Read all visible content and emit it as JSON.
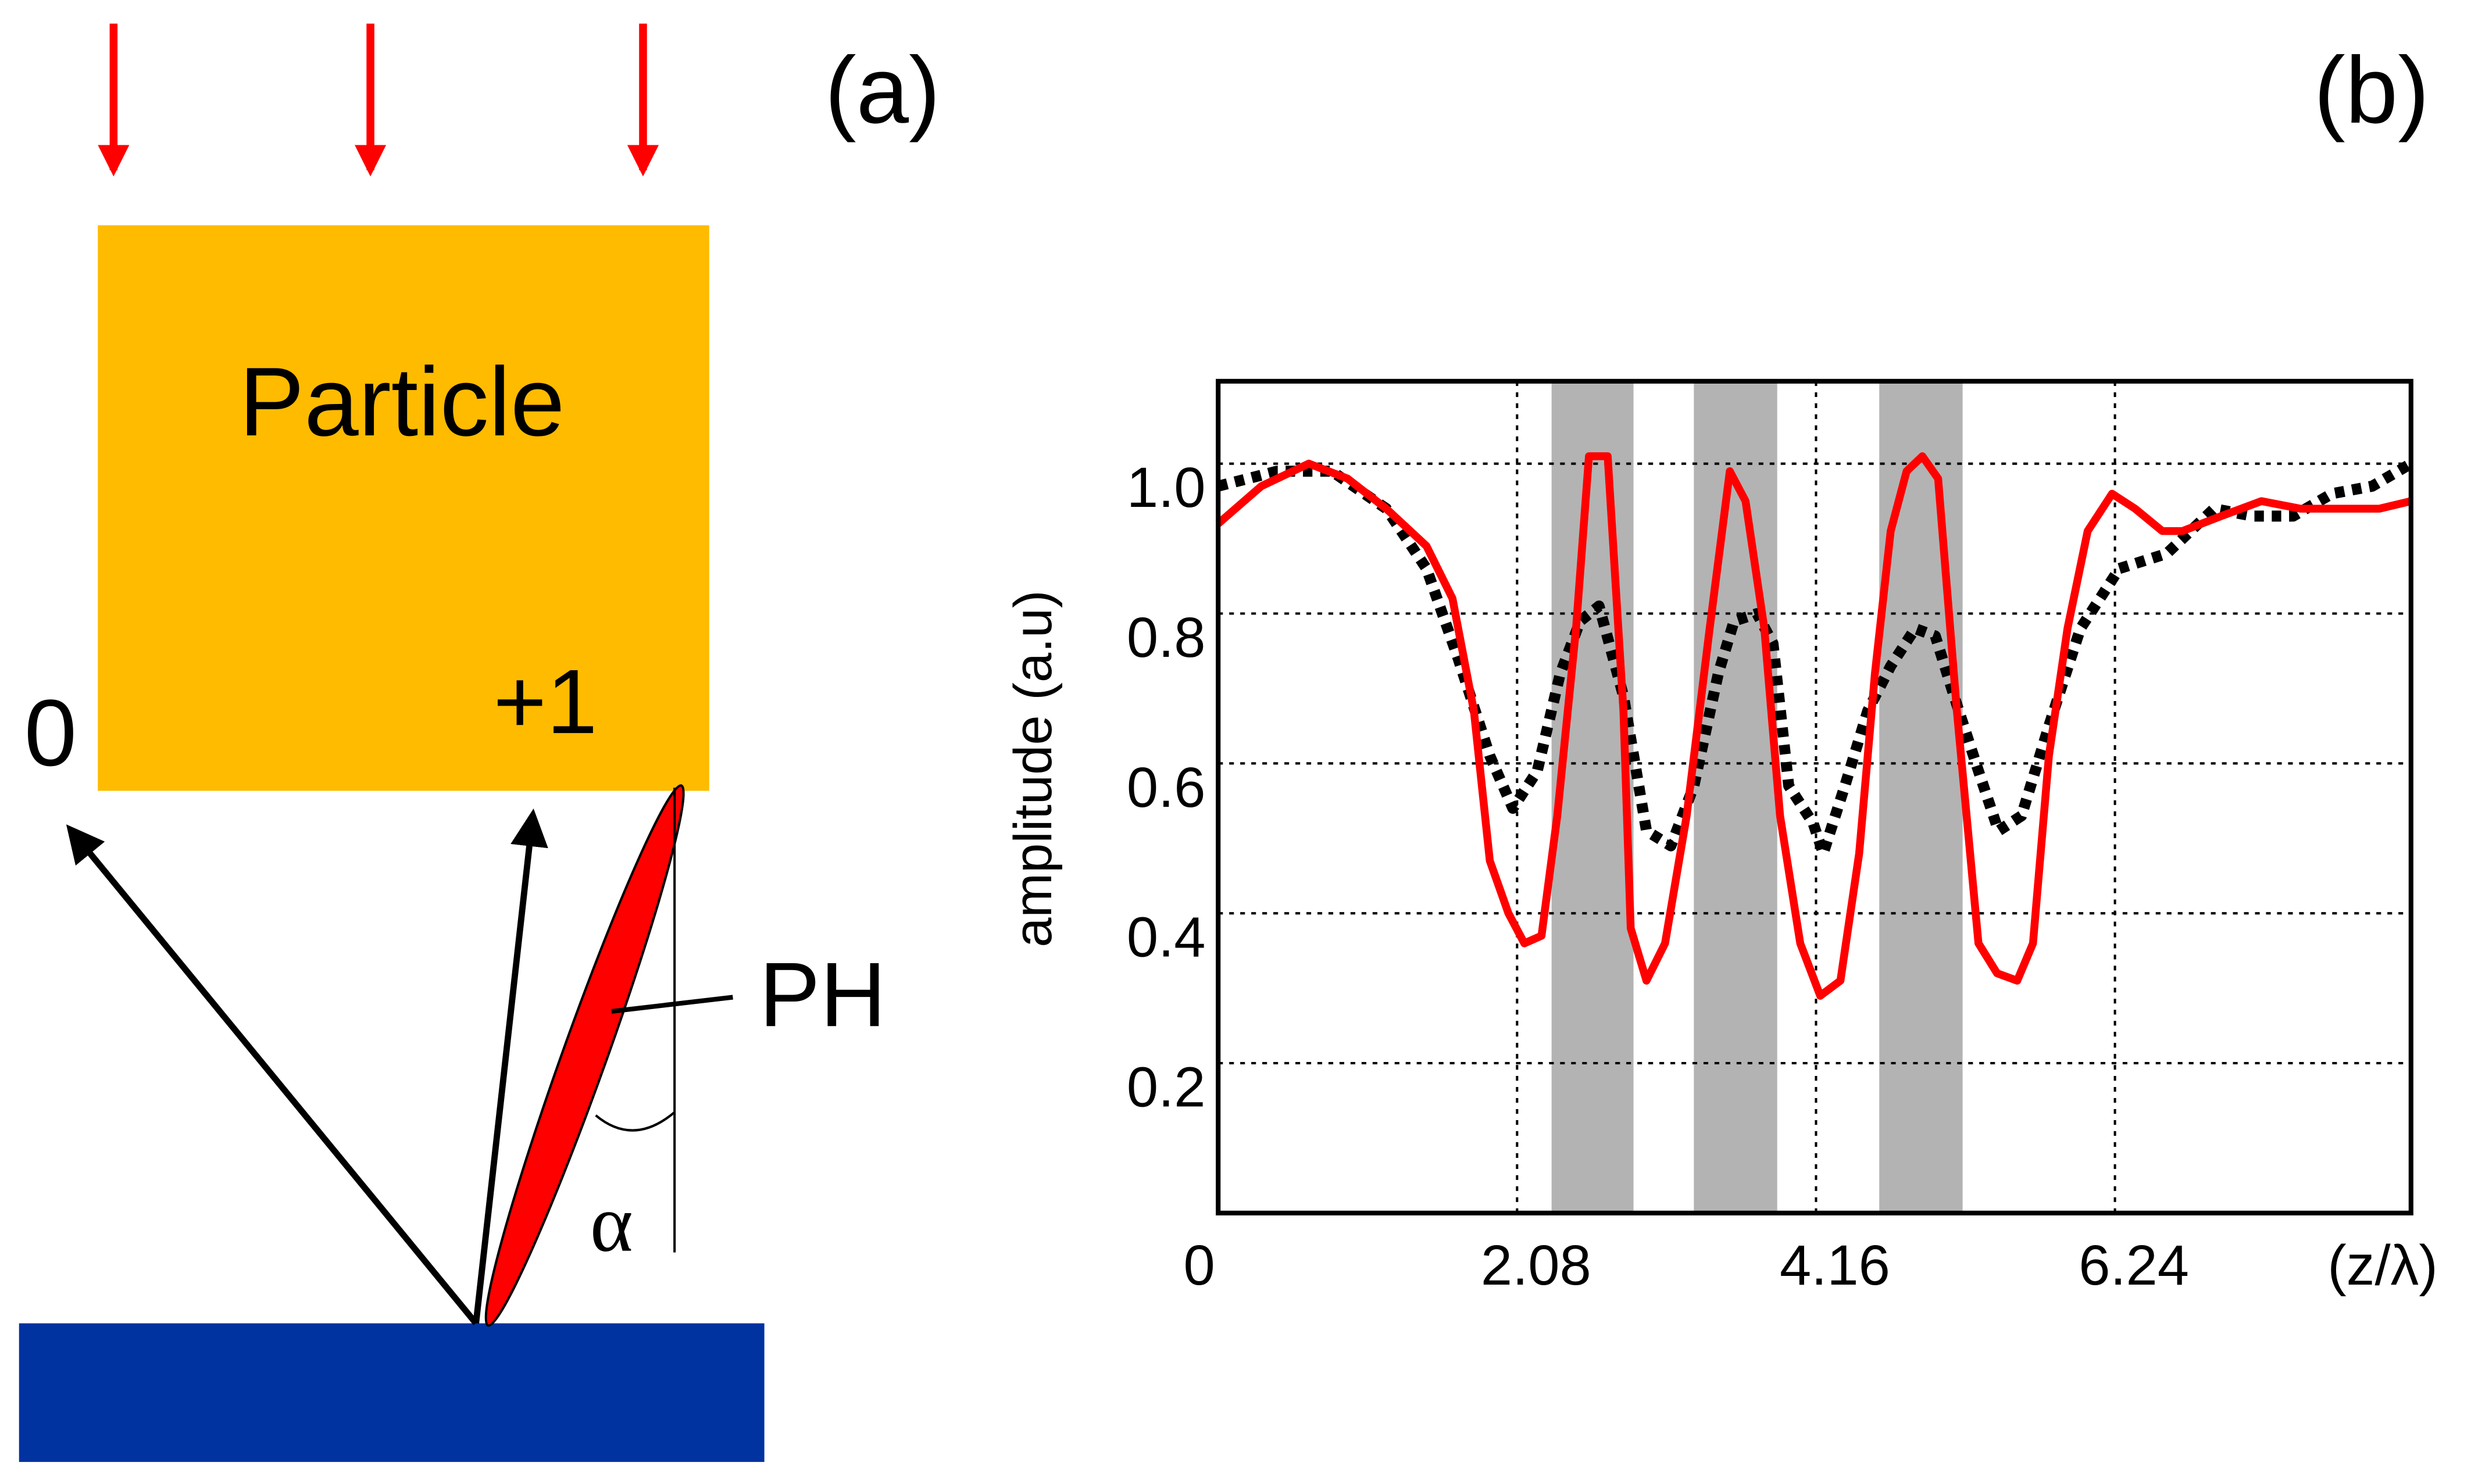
{
  "diagram": {
    "panel_label": "(a)",
    "particle_label": "Particle",
    "order_plus": "+1",
    "order_zero": "0",
    "ph_label": "PH",
    "angle_label": "α"
  },
  "chart_data": {
    "type": "line",
    "panel_label": "(b)",
    "y_label": "amplitude (a.u)",
    "x_label": "(z/λ)",
    "xlim": [
      0,
      8.3
    ],
    "ylim": [
      0,
      1.11
    ],
    "xticks": [
      0,
      2.08,
      4.16,
      6.24
    ],
    "yticks": [
      0.2,
      0.4,
      0.6,
      0.8,
      {
        "value": 1.0,
        "label": "1.0"
      }
    ],
    "grid": true,
    "shaded_regions": [
      [
        2.32,
        2.89
      ],
      [
        3.31,
        3.89
      ],
      [
        4.6,
        5.18
      ]
    ],
    "series": [
      {
        "color": "#ff0000",
        "style": "solid",
        "x": [
          0,
          0.3,
          0.63,
          0.9,
          1.17,
          1.45,
          1.63,
          1.78,
          1.89,
          2.02,
          2.13,
          2.25,
          2.36,
          2.49,
          2.58,
          2.71,
          2.82,
          2.87,
          2.98,
          3.11,
          3.26,
          3.42,
          3.56,
          3.67,
          3.8,
          3.91,
          4.05,
          4.19,
          4.33,
          4.46,
          4.57,
          4.68,
          4.79,
          4.9,
          5.01,
          5.14,
          5.29,
          5.42,
          5.56,
          5.67,
          5.78,
          5.91,
          6.05,
          6.22,
          6.38,
          6.57,
          6.71,
          6.98,
          7.26,
          7.53,
          7.81,
          8.08,
          8.3
        ],
        "values": [
          0.92,
          0.97,
          1.0,
          0.98,
          0.94,
          0.89,
          0.82,
          0.67,
          0.47,
          0.4,
          0.36,
          0.37,
          0.53,
          0.78,
          1.01,
          1.01,
          0.67,
          0.38,
          0.31,
          0.36,
          0.53,
          0.78,
          0.99,
          0.95,
          0.78,
          0.53,
          0.36,
          0.29,
          0.31,
          0.48,
          0.72,
          0.91,
          0.99,
          1.01,
          0.98,
          0.67,
          0.36,
          0.32,
          0.31,
          0.36,
          0.61,
          0.78,
          0.91,
          0.96,
          0.94,
          0.91,
          0.91,
          0.93,
          0.95,
          0.94,
          0.94,
          0.94,
          0.95
        ]
      },
      {
        "color": "#000000",
        "style": "dotted",
        "x": [
          0,
          0.41,
          0.79,
          1.17,
          1.45,
          1.67,
          1.89,
          2.05,
          2.22,
          2.38,
          2.52,
          2.65,
          2.82,
          2.98,
          3.15,
          3.31,
          3.48,
          3.59,
          3.75,
          3.86,
          3.97,
          4.14,
          4.21,
          4.36,
          4.52,
          4.68,
          4.85,
          4.99,
          5.12,
          5.29,
          5.43,
          5.59,
          5.78,
          6.0,
          6.27,
          6.6,
          6.93,
          7.2,
          7.48,
          7.75,
          8.03,
          8.3
        ],
        "values": [
          0.97,
          0.99,
          0.99,
          0.94,
          0.86,
          0.74,
          0.61,
          0.54,
          0.59,
          0.72,
          0.79,
          0.81,
          0.69,
          0.51,
          0.49,
          0.57,
          0.72,
          0.79,
          0.8,
          0.76,
          0.57,
          0.52,
          0.48,
          0.57,
          0.67,
          0.73,
          0.78,
          0.77,
          0.69,
          0.59,
          0.51,
          0.53,
          0.65,
          0.78,
          0.86,
          0.88,
          0.94,
          0.93,
          0.93,
          0.96,
          0.97,
          1.0
        ]
      }
    ]
  }
}
